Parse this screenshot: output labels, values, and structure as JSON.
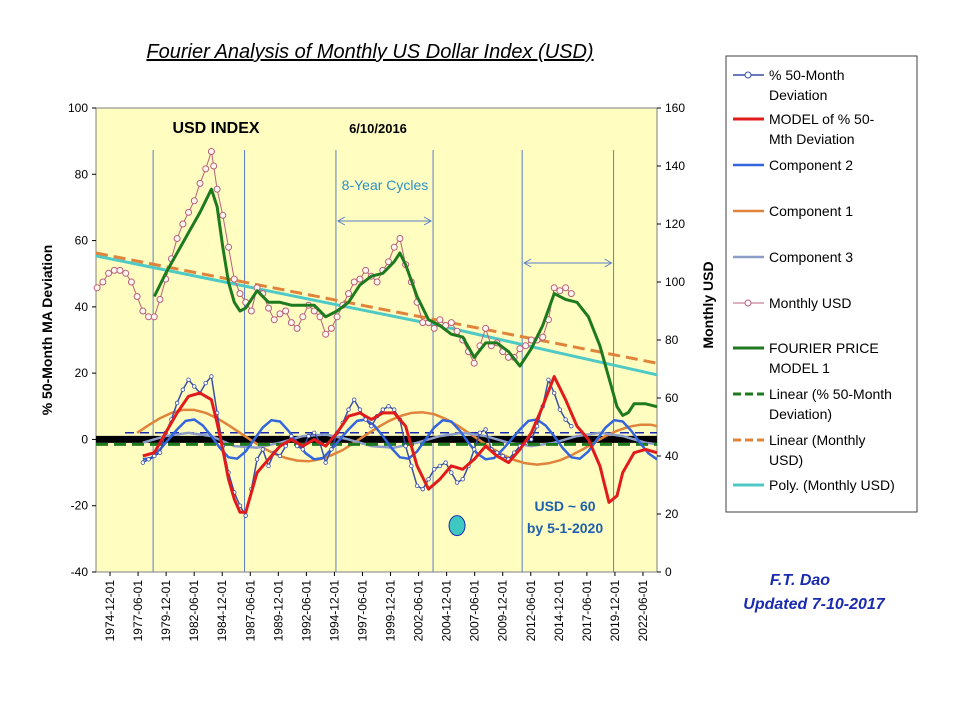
{
  "chart_data": {
    "type": "line",
    "title": "Fourier Analysis of Monthly US Dollar Index (USD)",
    "ylabel": "% 50-Month  MA Deviation",
    "y2label": "Monthly  USD",
    "ylim": [
      -40,
      100
    ],
    "y2lim": [
      0,
      160
    ],
    "yticks": [
      "100",
      "80",
      "60",
      "40",
      "20",
      "0",
      "-20",
      "-40"
    ],
    "y2ticks": [
      "160",
      "140",
      "120",
      "100",
      "80",
      "60",
      "40",
      "20",
      "0"
    ],
    "x_tick_labels": [
      "1974-12-01",
      "1977-06-01",
      "1979-12-01",
      "1982-06-01",
      "1984-12-01",
      "1987-06-01",
      "1989-12-01",
      "1992-06-01",
      "1994-12-01",
      "1997-06-01",
      "1999-12-01",
      "2002-06-01",
      "2004-12-01",
      "2007-06-01",
      "2009-12-01",
      "2012-06-01",
      "2014-12-01",
      "2017-06-01",
      "2019-12-01",
      "2022-06-01"
    ],
    "x_range_years": [
      1974.9,
      2024.0
    ],
    "grid": false,
    "legend_position": "right",
    "vertical_markers_years": [
      1979.9,
      1987.9,
      1995.9,
      2004.4,
      2012.2,
      2020.2
    ],
    "annotations": {
      "index_label": "USD INDEX",
      "date_label": "6/10/2016",
      "cycles_label": "8-Year Cycles",
      "cycles_span_years_1": [
        1995.9,
        2004.4
      ],
      "cycles_span_years_2": [
        2012.2,
        2020.2
      ],
      "forecast_line1": "USD ~ 60",
      "forecast_line2": "by 5-1-2020",
      "forecast_dot_year": 2006.5,
      "forecast_dot_pct": -26,
      "author": "F.T. Dao",
      "updated": "Updated 7-10-2017"
    },
    "series": [
      {
        "name": "% 50-Month Deviation",
        "axis": "left",
        "color": "#3A4FA8",
        "x": [
          1979.0,
          1979.5,
          1980.0,
          1980.5,
          1981.0,
          1981.5,
          1982.0,
          1982.5,
          1983.0,
          1983.5,
          1984.0,
          1984.5,
          1985.0,
          1985.5,
          1986.0,
          1986.5,
          1987.0,
          1987.5,
          1988.0,
          1988.5,
          1989.0,
          1989.5,
          1990.0,
          1990.5,
          1991.0,
          1991.5,
          1992.0,
          1992.5,
          1993.0,
          1993.5,
          1994.0,
          1994.5,
          1995.0,
          1995.5,
          1996.0,
          1996.5,
          1997.0,
          1997.5,
          1998.0,
          1998.5,
          1999.0,
          1999.5,
          2000.0,
          2000.5,
          2001.0,
          2001.5,
          2002.0,
          2002.5,
          2003.0,
          2003.5,
          2004.0,
          2004.5,
          2005.0,
          2005.5,
          2006.0,
          2006.5,
          2007.0,
          2007.5,
          2008.0,
          2008.5,
          2009.0,
          2009.5,
          2010.0,
          2010.5,
          2011.0,
          2011.5,
          2012.0,
          2012.5,
          2013.0,
          2013.5,
          2014.0,
          2014.5,
          2015.0,
          2015.5,
          2016.0,
          2016.5
        ],
        "y": [
          -7,
          -6,
          -5,
          -4,
          2,
          6,
          11,
          15,
          18,
          16,
          14,
          17,
          19,
          8,
          -2,
          -10,
          -16,
          -20,
          -23,
          -15,
          -6,
          -3,
          -8,
          -4,
          -5,
          -2,
          1,
          -2,
          -3,
          1,
          2,
          -1,
          -7,
          -3,
          2,
          5,
          9,
          12,
          9,
          6,
          4,
          7,
          9,
          10,
          9,
          6,
          -2,
          -8,
          -14,
          -15,
          -12,
          -9,
          -8,
          -7,
          -10,
          -13,
          -12,
          -8,
          -3,
          2,
          3,
          -3,
          -4,
          -5,
          -6,
          -4,
          -2,
          -1,
          0,
          4,
          10,
          18,
          14,
          9,
          6,
          4
        ]
      },
      {
        "name": "MODEL of  % 50-Mth Deviation",
        "axis": "left",
        "color": "#E11B1B",
        "x": [
          1979.0,
          1980.0,
          1981.0,
          1982.0,
          1983.0,
          1984.0,
          1985.0,
          1985.5,
          1986.0,
          1986.5,
          1987.0,
          1987.5,
          1988.0,
          1989.0,
          1990.0,
          1991.0,
          1992.0,
          1993.0,
          1994.0,
          1995.0,
          1996.0,
          1997.0,
          1998.0,
          1999.0,
          2000.0,
          2001.0,
          2002.0,
          2003.0,
          2004.0,
          2005.0,
          2006.0,
          2007.0,
          2008.0,
          2009.0,
          2010.0,
          2011.0,
          2012.0,
          2013.0,
          2014.0,
          2015.0,
          2016.0,
          2017.0,
          2018.0,
          2019.0,
          2019.8,
          2020.5,
          2021.0,
          2022.0,
          2023.0,
          2024.0
        ],
        "y": [
          -5,
          -4,
          2,
          8,
          13,
          14,
          12,
          5,
          -3,
          -12,
          -18,
          -22,
          -22,
          -10,
          -6,
          -2,
          0,
          -2,
          0,
          -2,
          2,
          7,
          8,
          6,
          8,
          8,
          4,
          -8,
          -15,
          -12,
          -8,
          -9,
          -6,
          -2,
          -5,
          -7,
          -3,
          2,
          10,
          19,
          12,
          4,
          0,
          -8,
          -19,
          -17,
          -10,
          -4,
          -3,
          -4
        ]
      },
      {
        "name": "Component 2",
        "axis": "left",
        "color": "#3366DD",
        "x": [
          1979.0,
          1979.75,
          1980.5,
          1981.25,
          1982.0,
          1982.75,
          1983.5,
          1984.25,
          1985.0,
          1985.75,
          1986.5,
          1987.25,
          1988.0,
          1988.75,
          1989.5,
          1990.25,
          1991.0,
          1991.75,
          1992.5,
          1993.25,
          1994.0,
          1994.75,
          1995.5,
          1996.25,
          1997.0,
          1997.75,
          1998.5,
          1999.25,
          2000.0,
          2000.75,
          2001.5,
          2002.25,
          2003.0,
          2003.75,
          2004.5,
          2005.25,
          2006.0,
          2006.75,
          2007.5,
          2008.25,
          2009.0,
          2009.75,
          2010.5,
          2011.25,
          2012.0,
          2012.75,
          2013.5,
          2014.25,
          2015.0,
          2015.75,
          2016.5,
          2017.25,
          2018.0,
          2018.75,
          2019.5,
          2020.25,
          2021.0,
          2021.75,
          2022.5,
          2023.25,
          2024.0
        ],
        "y": [
          -6,
          -5.6,
          -3,
          0,
          3,
          5.6,
          6,
          4.2,
          1,
          -2.6,
          -5.4,
          -5.8,
          -3.6,
          0,
          3.6,
          5.8,
          5.4,
          2.6,
          -1,
          -4.2,
          -6,
          -5.6,
          -3,
          0,
          3,
          5.6,
          6,
          4.2,
          1,
          -2.6,
          -5.4,
          -5.8,
          -3.6,
          0,
          3.6,
          5.8,
          5.4,
          2.6,
          -1,
          -4.2,
          -6,
          -5.6,
          -3,
          0,
          3,
          5.6,
          6,
          4.2,
          1,
          -2.6,
          -5.4,
          -5.8,
          -3.6,
          0,
          3.6,
          5.8,
          5.4,
          2.6,
          -1,
          -4.2,
          -6
        ]
      },
      {
        "name": "Component 1",
        "axis": "left",
        "color": "#E0843C",
        "x": [
          1978.5,
          1979.5,
          1980.5,
          1981.5,
          1982.5,
          1983.5,
          1984.5,
          1985.5,
          1986.5,
          1987.5,
          1988.5,
          1989.5,
          1990.5,
          1991.5,
          1992.5,
          1993.5,
          1994.5,
          1995.5,
          1996.5,
          1997.5,
          1998.5,
          1999.5,
          2000.5,
          2001.5,
          2002.5,
          2003.5,
          2004.5,
          2005.5,
          2006.5,
          2007.5,
          2008.5,
          2009.5,
          2010.5,
          2011.5,
          2012.5,
          2013.5,
          2014.5,
          2015.5,
          2016.5,
          2017.5,
          2018.5,
          2019.5,
          2020.5,
          2021.5,
          2022.5,
          2023.5,
          2024.0
        ],
        "y": [
          2,
          4.3,
          6.4,
          8,
          8.9,
          8.9,
          8,
          6.4,
          4.3,
          2,
          -0.3,
          -2.5,
          -4.3,
          -5.6,
          -6.4,
          -6.6,
          -6,
          -4.8,
          -3.2,
          -1,
          1.3,
          3.5,
          5.5,
          7,
          8,
          8.2,
          7.6,
          6.2,
          4.3,
          2,
          -0.3,
          -2.6,
          -4.6,
          -6.2,
          -7.2,
          -7.6,
          -7.2,
          -6.3,
          -4.8,
          -3,
          -1,
          1,
          2.6,
          3.8,
          4.4,
          4.4,
          4
        ]
      },
      {
        "name": "Component 3",
        "axis": "left",
        "color": "#8C9DC7",
        "x": [
          1979.0,
          1981.0,
          1983.0,
          1985.0,
          1987.0,
          1989.0,
          1991.0,
          1993.0,
          1995.0,
          1997.0,
          1999.0,
          2001.0,
          2003.0,
          2005.0,
          2007.0,
          2009.0,
          2011.0,
          2013.0,
          2015.0,
          2017.0,
          2019.0,
          2021.0,
          2023.0,
          2024.0
        ],
        "y": [
          -1,
          1,
          2,
          1,
          -2,
          -2.5,
          -1,
          1,
          1.5,
          0,
          -2,
          -2.5,
          -1,
          1,
          2,
          1,
          -1,
          -2,
          -1,
          1,
          2,
          1,
          -1,
          -1.5
        ]
      },
      {
        "name": "Monthly USD",
        "axis": "right",
        "color": "#B8607A",
        "x": [
          1975.0,
          1975.5,
          1976.0,
          1976.5,
          1977.0,
          1977.5,
          1978.0,
          1978.5,
          1979.0,
          1979.5,
          1980.0,
          1980.5,
          1981.0,
          1981.5,
          1982.0,
          1982.5,
          1983.0,
          1983.5,
          1984.0,
          1984.5,
          1985.0,
          1985.2,
          1985.5,
          1986.0,
          1986.5,
          1987.0,
          1987.5,
          1988.0,
          1988.5,
          1989.0,
          1989.5,
          1990.0,
          1990.5,
          1991.0,
          1991.5,
          1992.0,
          1992.5,
          1993.0,
          1993.5,
          1994.0,
          1994.5,
          1995.0,
          1995.5,
          1996.0,
          1996.5,
          1997.0,
          1997.5,
          1998.0,
          1998.5,
          1999.0,
          1999.5,
          2000.0,
          2000.5,
          2001.0,
          2001.5,
          2002.0,
          2002.5,
          2003.0,
          2003.5,
          2004.0,
          2004.5,
          2005.0,
          2005.5,
          2006.0,
          2006.5,
          2007.0,
          2007.5,
          2008.0,
          2008.5,
          2009.0,
          2009.5,
          2010.0,
          2010.5,
          2011.0,
          2011.5,
          2012.0,
          2012.5,
          2013.0,
          2013.5,
          2014.0,
          2014.5,
          2015.0,
          2015.5,
          2016.0,
          2016.5
        ],
        "y": [
          98,
          100,
          103,
          104,
          104,
          103,
          100,
          95,
          90,
          88,
          88,
          94,
          101,
          108,
          115,
          120,
          124,
          128,
          134,
          139,
          145,
          140,
          132,
          123,
          112,
          101,
          96,
          93,
          90,
          98,
          96,
          91,
          87,
          89,
          90,
          86,
          84,
          88,
          92,
          90,
          88,
          82,
          84,
          88,
          92,
          96,
          100,
          101,
          104,
          102,
          100,
          104,
          107,
          112,
          115,
          106,
          100,
          93,
          86,
          86,
          84,
          87,
          85,
          86,
          83,
          80,
          76,
          72,
          78,
          84,
          78,
          79,
          76,
          74,
          74,
          77,
          78,
          80,
          80,
          81,
          87,
          98,
          97,
          98,
          96
        ]
      },
      {
        "name": "FOURIER PRICE MODEL 1",
        "axis": "right",
        "color": "#1E7A1E",
        "x": [
          1980.0,
          1981.0,
          1982.0,
          1983.0,
          1984.0,
          1985.0,
          1985.5,
          1986.0,
          1986.5,
          1987.0,
          1987.5,
          1988.0,
          1989.0,
          1990.0,
          1991.0,
          1992.0,
          1993.0,
          1994.0,
          1995.0,
          1996.0,
          1997.0,
          1998.0,
          1999.0,
          2000.0,
          2001.0,
          2001.5,
          2002.0,
          2003.0,
          2004.0,
          2005.0,
          2006.0,
          2007.0,
          2008.0,
          2009.0,
          2010.0,
          2011.0,
          2012.0,
          2013.0,
          2014.0,
          2015.0,
          2016.0,
          2017.0,
          2018.0,
          2019.0,
          2020.0,
          2020.5,
          2021.0,
          2021.5,
          2022.0,
          2023.0,
          2024.0
        ],
        "y": [
          95,
          103,
          110,
          117,
          124,
          132,
          126,
          112,
          100,
          93,
          90,
          91,
          97,
          93,
          93,
          92,
          92,
          92,
          88,
          90,
          93,
          99,
          102,
          103,
          107,
          110,
          106,
          95,
          87,
          85,
          82,
          81,
          74,
          79,
          79,
          76,
          71,
          77,
          85,
          96,
          94,
          93,
          88,
          78,
          64,
          57,
          54,
          55,
          58,
          58,
          57
        ]
      },
      {
        "name": "Linear (% 50-Month Deviation)",
        "axis": "left",
        "color": "#1E7A1E",
        "x": [
          1974.9,
          2024.0
        ],
        "y": [
          -1.5,
          -1.5
        ]
      },
      {
        "name": "Linear (Monthly USD)",
        "axis": "right",
        "color": "#E0843C",
        "x": [
          1974.9,
          2024.0
        ],
        "y": [
          110,
          72
        ]
      },
      {
        "name": "Poly. (Monthly USD)",
        "axis": "right",
        "color": "#4FC9C6",
        "x": [
          1974.9,
          1984.9,
          1994.9,
          2004.9,
          2014.9,
          2024.0
        ],
        "y": [
          109,
          101,
          93,
          85,
          76,
          68
        ]
      }
    ],
    "reference_lines": [
      {
        "y": 0,
        "axis": "left",
        "color": "#000000",
        "style": "thick-solid"
      },
      {
        "y": 2,
        "axis": "left",
        "color": "#1A2BB0",
        "style": "dashed"
      }
    ]
  }
}
